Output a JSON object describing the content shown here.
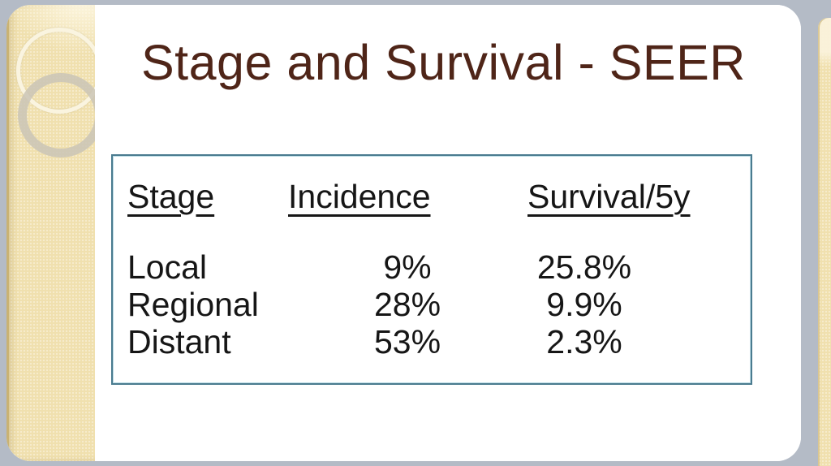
{
  "page": {
    "background_color": "#b4bbc6"
  },
  "slide": {
    "title": "Stage and Survival - SEER",
    "title_color": "#4f2518",
    "sidebar_color": "#f0e0ae",
    "table": {
      "border_color": "#4a7b8f",
      "headers": {
        "stage": "Stage",
        "incidence": "Incidence",
        "survival": "Survival/5y"
      },
      "rows": [
        {
          "stage": "Local",
          "incidence": "9%",
          "survival": "25.8%"
        },
        {
          "stage": "Regional",
          "incidence": "28%",
          "survival": "9.9%"
        },
        {
          "stage": "Distant",
          "incidence": "53%",
          "survival": "2.3%"
        }
      ]
    }
  },
  "chart_data": {
    "type": "table",
    "title": "Stage and Survival - SEER",
    "columns": [
      "Stage",
      "Incidence",
      "Survival/5y"
    ],
    "rows": [
      [
        "Local",
        "9%",
        "25.8%"
      ],
      [
        "Regional",
        "28%",
        "9.9%"
      ],
      [
        "Distant",
        "53%",
        "2.3%"
      ]
    ]
  }
}
